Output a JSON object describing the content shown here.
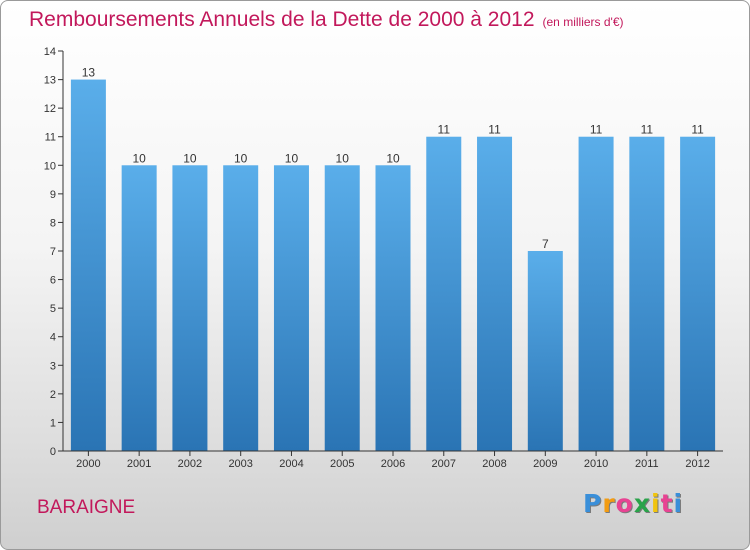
{
  "title": "Remboursements Annuels de la Dette de 2000 à 2012",
  "subtitle": "(en milliers d'€)",
  "town": "BARAIGNE",
  "logo": {
    "letters": [
      "P",
      "r",
      "o",
      "x",
      "i",
      "t",
      "i"
    ],
    "colors": [
      "#3a8fd9",
      "#f39c12",
      "#e84393",
      "#2aa34a",
      "#f1c40f",
      "#e84393",
      "#3a8fd9"
    ]
  },
  "colors": {
    "title": "#c2185b",
    "bar_top": "#5aaeea",
    "bar_bottom": "#2a74b4"
  },
  "chart_data": {
    "type": "bar",
    "categories": [
      "2000",
      "2001",
      "2002",
      "2003",
      "2004",
      "2005",
      "2006",
      "2007",
      "2008",
      "2009",
      "2010",
      "2011",
      "2012"
    ],
    "values": [
      13,
      10,
      10,
      10,
      10,
      10,
      10,
      11,
      11,
      7,
      11,
      11,
      11
    ],
    "data_labels": [
      "13",
      "10",
      "10",
      "10",
      "10",
      "10",
      "10",
      "11",
      "11",
      "7",
      "11",
      "11",
      "11"
    ],
    "yticks": [
      "0",
      "1",
      "2",
      "3",
      "4",
      "5",
      "6",
      "7",
      "8",
      "9",
      "10",
      "11",
      "12",
      "13",
      "14"
    ],
    "ylim": [
      0,
      14
    ],
    "grid": false,
    "legend": "none"
  }
}
